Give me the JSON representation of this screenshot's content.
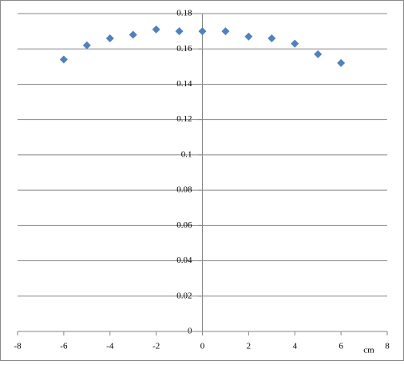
{
  "chart_data": {
    "type": "scatter",
    "x_label": "cm",
    "color": "#4f81bd",
    "grid": true,
    "x": [
      -6,
      -5,
      -4,
      -3,
      -2,
      -1,
      0,
      1,
      2,
      3,
      4,
      5,
      6
    ],
    "values": [
      0.154,
      0.162,
      0.166,
      0.168,
      0.171,
      0.17,
      0.17,
      0.17,
      0.167,
      0.166,
      0.163,
      0.157,
      0.152
    ],
    "xlim": [
      -8,
      8
    ],
    "xticks": [
      -8,
      -6,
      -4,
      -2,
      0,
      2,
      4,
      6,
      8
    ],
    "ylim": [
      0,
      0.18
    ],
    "yticks": [
      0,
      0.02,
      0.04,
      0.06,
      0.08,
      0.1,
      0.12,
      0.14,
      0.16,
      0.18
    ]
  }
}
